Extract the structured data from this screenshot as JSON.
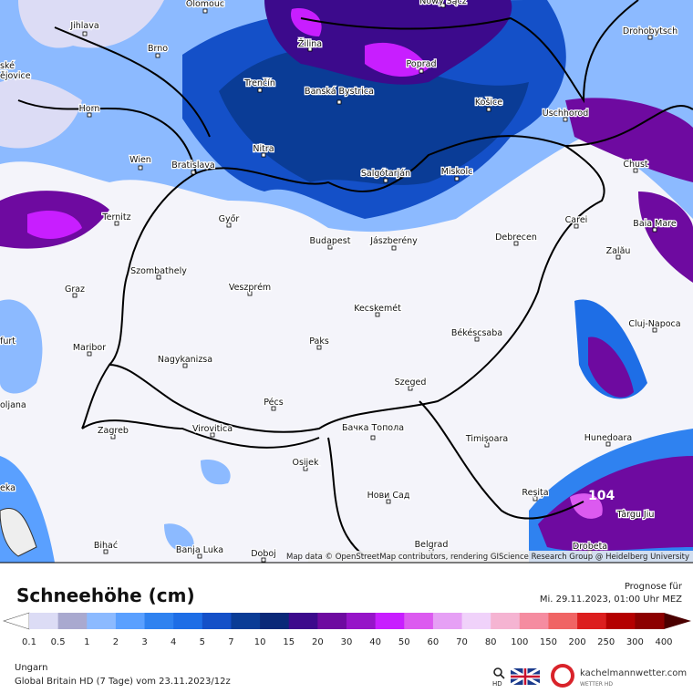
{
  "map": {
    "cities": [
      "Olomouc",
      "Nowy Sącz",
      "Jihlava",
      "Brno",
      "Žilina",
      "Poprad",
      "Drohobytsch",
      "Trenčín",
      "Banská Bystrica",
      "Košice",
      "Uschhorod",
      "Horn",
      "Nitra",
      "Wien",
      "Bratislava",
      "Salgótarján",
      "Miskolc",
      "Chust",
      "Ternitz",
      "Győr",
      "Budapest",
      "Jászberény",
      "Debrecen",
      "Carei",
      "Baia Mare",
      "Szombathely",
      "Zalău",
      "Veszprém",
      "Graz",
      "Kecskemét",
      "Cluj-Napoca",
      "Paks",
      "Békéscsaba",
      "Maribor",
      "Nagykanizsa",
      "Szeged",
      "Pécs",
      "Zagreb",
      "Virovitica",
      "Бачка Топола",
      "Timișoara",
      "Hunedoara",
      "Osijek",
      "Reșița",
      "Нови Сад",
      "Târgu Jiu",
      "Bihać",
      "Banja Luka",
      "Doboj",
      "Belgrad",
      "Drobeta",
      "ské",
      "ějovice",
      "furt",
      "oljana",
      "eka"
    ],
    "annotation": "104",
    "attribution": "Map data © OpenStreetMap contributors, rendering GIScience Research Group @ Heidelberg University"
  },
  "legend": {
    "title": "Schneehöhe (cm)",
    "ticks": [
      "0.1",
      "0.5",
      "1",
      "2",
      "3",
      "4",
      "5",
      "7",
      "10",
      "15",
      "20",
      "30",
      "40",
      "50",
      "60",
      "70",
      "80",
      "100",
      "150",
      "200",
      "250",
      "300",
      "400"
    ],
    "colors": [
      "#dcdcf5",
      "#a9a9cf",
      "#8cbaff",
      "#5aa0ff",
      "#2f82f0",
      "#1e6ee6",
      "#1450c8",
      "#0a3c96",
      "#0a2878",
      "#3c0a8c",
      "#6e0aa0",
      "#9614c8",
      "#c81eff",
      "#dc5af0",
      "#e6a0f5",
      "#f0d2fa",
      "#f5b4d2",
      "#f58ca0",
      "#f06464",
      "#dc1e1e",
      "#b40000",
      "#8c0000"
    ],
    "under_color": "#ffffff",
    "over_color": "#4b0000"
  },
  "footer": {
    "forecast_label": "Prognose für",
    "forecast_time": "Mi. 29.11.2023, 01:00 Uhr MEZ",
    "region": "Ungarn",
    "model": "Global Britain HD (7 Tage) vom  23.11.2023/12z",
    "brand": "kachelmannwetter.com",
    "brand_sub": "WETTER HD",
    "hd": "HD"
  }
}
